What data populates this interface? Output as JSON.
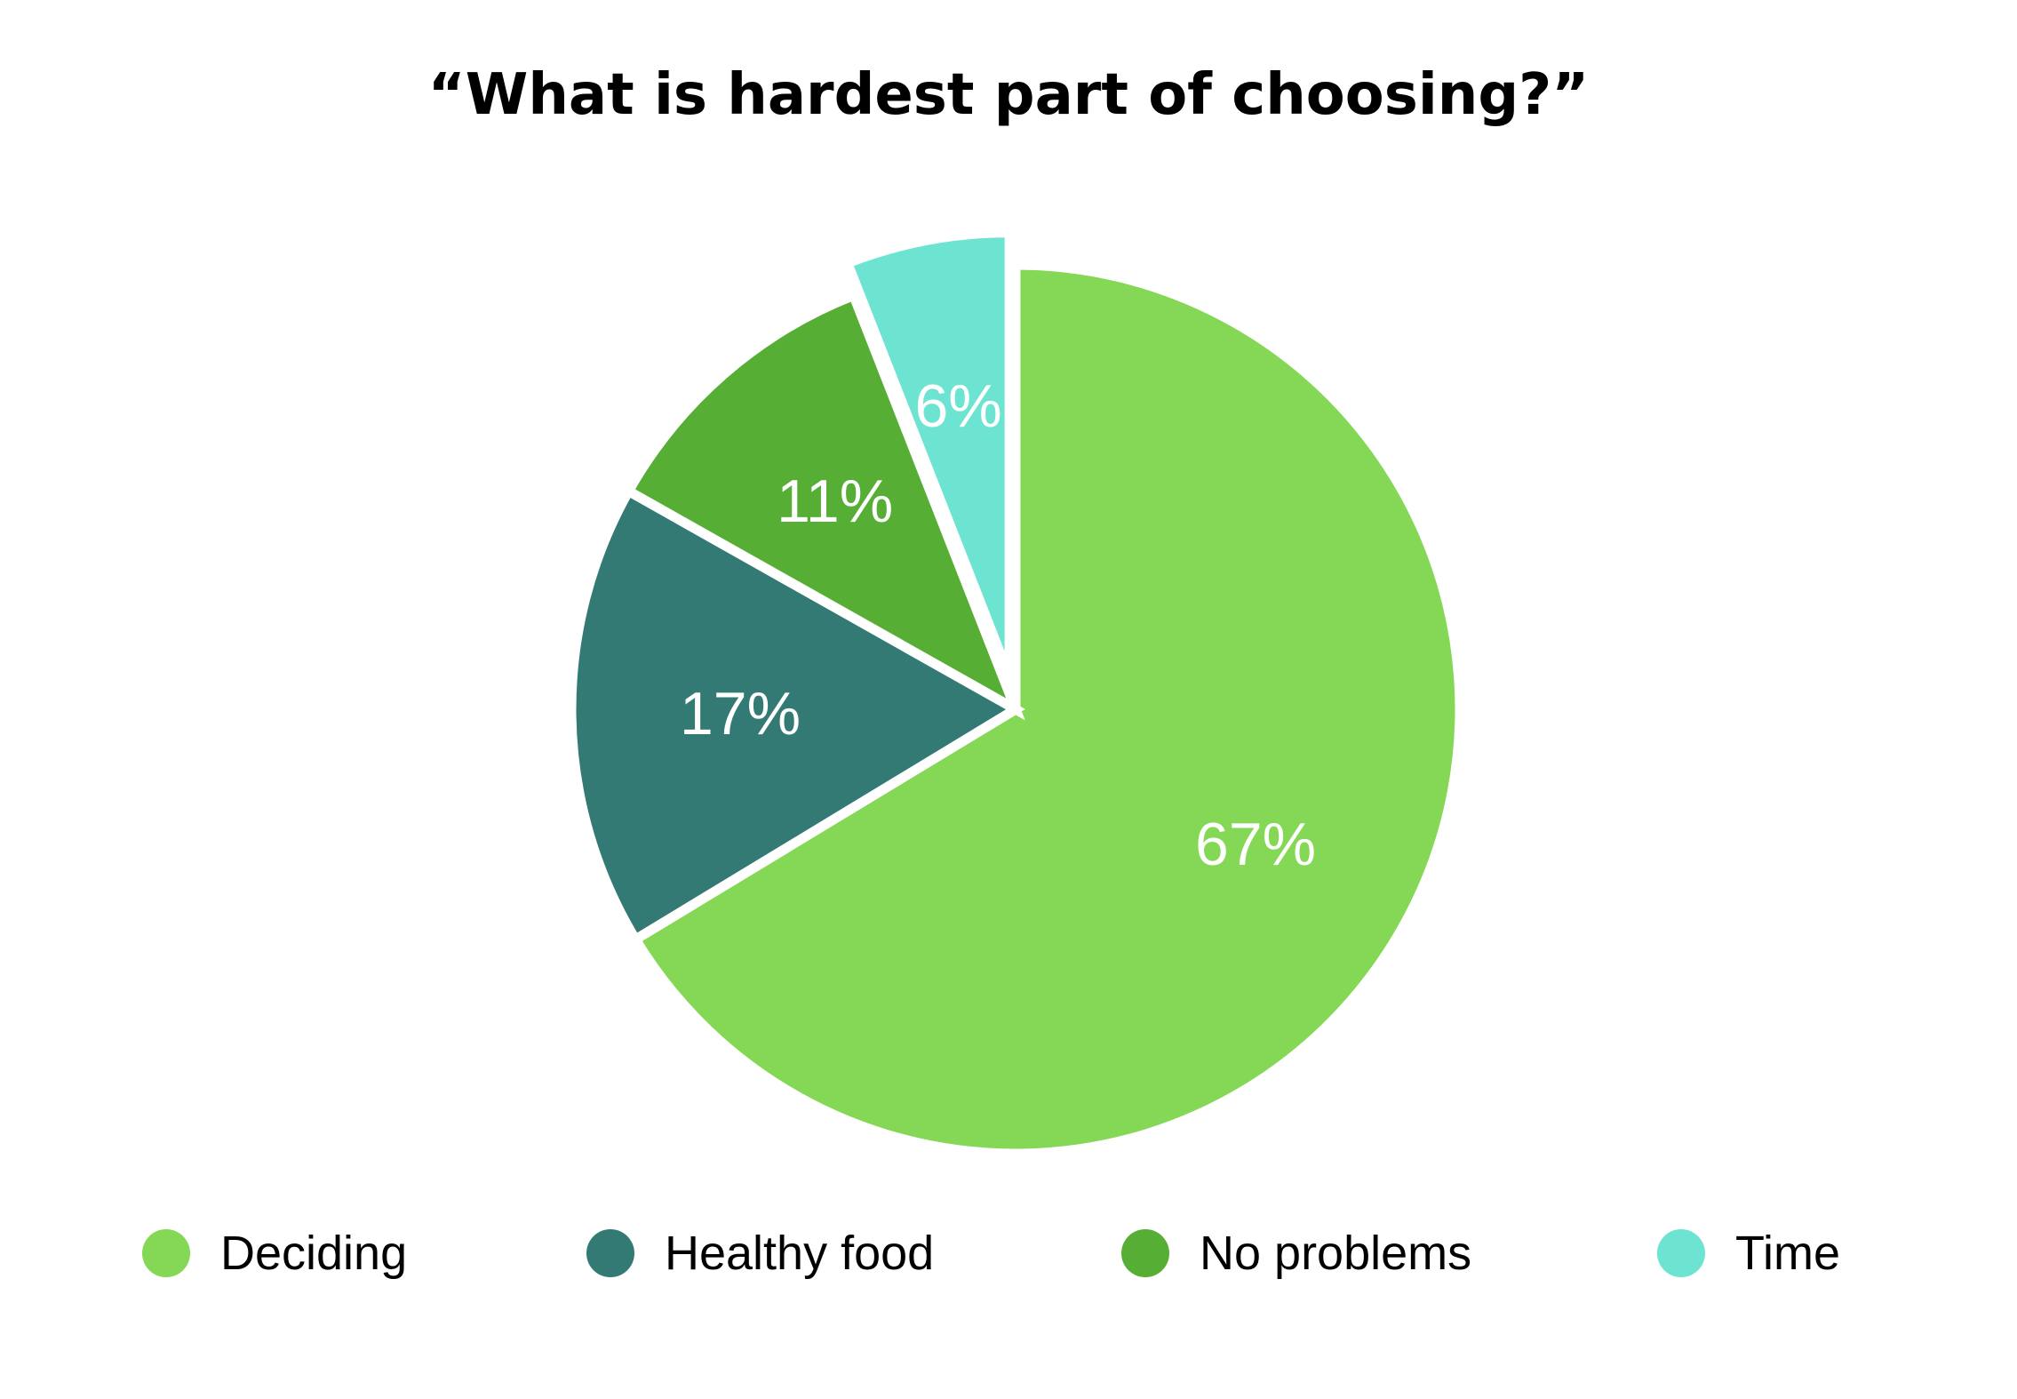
{
  "chart_data": {
    "type": "pie",
    "title": "“What is hardest part of choosing?”",
    "categories": [
      "Deciding",
      "Healthy food",
      "No problems",
      "Time"
    ],
    "values": [
      67,
      17,
      11,
      6
    ],
    "labels": [
      "67%",
      "17%",
      "11%",
      "6%"
    ],
    "colors": [
      "#84d855",
      "#347a74",
      "#56ae34",
      "#6de3d2"
    ],
    "exploded": [
      "Time"
    ],
    "legend": "bottom"
  }
}
